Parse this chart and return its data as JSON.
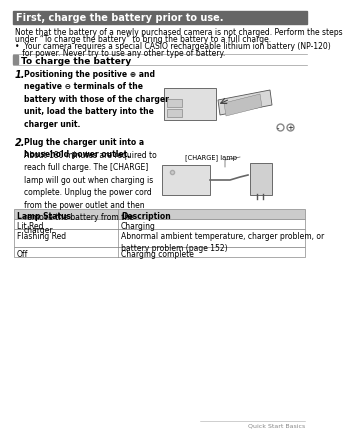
{
  "title": "First, charge the battery prior to use.",
  "title_bg": "#666666",
  "title_color": "#ffffff",
  "section_header": "To charge the battery",
  "intro_line1": "Note that the battery of a newly purchased camera is not charged. Perform the steps",
  "intro_line2": "under “To charge the battery” to bring the battery to a full charge.",
  "bullet_line1": "•  Your camera requires a special CASIO rechargeable lithium ion battery (NP-120)",
  "bullet_line2": "   for power. Never try to use any other type of battery.",
  "step1_num": "1.",
  "step1_text_bold": "Positioning the positive ⊕ and\nnegative ⊖ terminals of the\nbattery with those of the charger\nunit, load the battery into the\ncharger unit.",
  "step2_num": "2.",
  "step2_bold": "Plug the charger unit into a\nhousehold power outlet.",
  "step2_normal": "About 180 minutes are required to\nreach full charge. The [CHARGE]\nlamp will go out when charging is\ncomplete. Unplug the power cord\nfrom the power outlet and then\nremove the battery from the\ncharger.",
  "charge_lamp_label": "[CHARGE] lamp",
  "table_header": [
    "Lamp Status",
    "Description"
  ],
  "table_header_bg": "#cccccc",
  "table_rows": [
    [
      "Lit Red",
      "Charging"
    ],
    [
      "Flashing Red",
      "Abnormal ambient temperature, charger problem, or\nbattery problem (page 152)"
    ],
    [
      "Off",
      "Charging complete"
    ]
  ],
  "footer_text": "Quick Start Basics",
  "bg_color": "#ffffff",
  "text_color": "#000000",
  "body_fontsize": 5.5,
  "title_fontsize": 7.0,
  "section_fontsize": 6.5
}
